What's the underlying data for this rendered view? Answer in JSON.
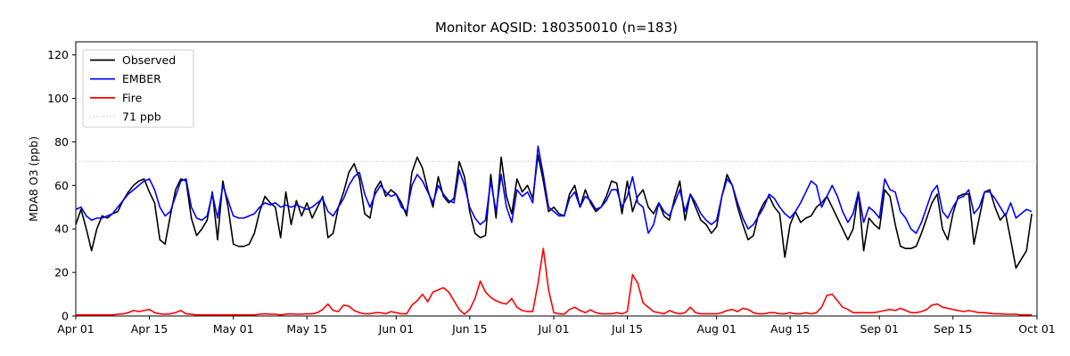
{
  "figure": {
    "title": "Monitor AQSID: 180350010 (n=183)",
    "ylabel": "MDA8 O3 (ppb)"
  },
  "chart_data": {
    "type": "line",
    "title": "Monitor AQSID: 180350010 (n=183)",
    "xlabel": "",
    "ylabel": "MDA8 O3 (ppb)",
    "n_points": 183,
    "x_range_days": 183,
    "x_start": "Apr 01",
    "x_end": "Oct 01",
    "ylim": [
      0,
      126
    ],
    "grid": false,
    "y_ticks": [
      0,
      20,
      40,
      60,
      80,
      100,
      120
    ],
    "x_ticks": [
      {
        "label": "Apr 01",
        "day": 0
      },
      {
        "label": "Apr 15",
        "day": 14
      },
      {
        "label": "May 01",
        "day": 30
      },
      {
        "label": "May 15",
        "day": 44
      },
      {
        "label": "Jun 01",
        "day": 61
      },
      {
        "label": "Jun 15",
        "day": 75
      },
      {
        "label": "Jul 01",
        "day": 91
      },
      {
        "label": "Jul 15",
        "day": 105
      },
      {
        "label": "Aug 01",
        "day": 122
      },
      {
        "label": "Aug 15",
        "day": 136
      },
      {
        "label": "Sep 01",
        "day": 153
      },
      {
        "label": "Sep 15",
        "day": 167
      },
      {
        "label": "Oct 01",
        "day": 183
      }
    ],
    "threshold": {
      "label": "71 ppb",
      "value": 71,
      "color": "#d3d3d3",
      "style": "dotted"
    },
    "legend": {
      "position": "upper-left",
      "entries": [
        {
          "label": "Observed",
          "color": "#000000",
          "style": "solid"
        },
        {
          "label": "EMBER",
          "color": "#0000ff",
          "style": "solid"
        },
        {
          "label": "Fire",
          "color": "#ff0000",
          "style": "solid"
        },
        {
          "label": "71 ppb",
          "color": "#d3d3d3",
          "style": "dotted"
        }
      ]
    },
    "series": [
      {
        "name": "Observed",
        "color": "#000000",
        "style": "solid",
        "values": [
          42,
          49,
          40,
          30,
          40,
          46,
          45,
          47,
          48,
          53,
          57,
          60,
          62,
          63,
          57,
          52,
          35,
          33,
          46,
          58,
          63,
          62,
          45,
          37,
          40,
          44,
          57,
          35,
          62,
          50,
          33,
          32,
          32,
          33,
          38,
          48,
          55,
          52,
          50,
          36,
          57,
          42,
          53,
          46,
          52,
          45,
          50,
          55,
          36,
          38,
          50,
          57,
          66,
          70,
          63,
          47,
          45,
          58,
          62,
          55,
          58,
          56,
          52,
          46,
          66,
          73,
          68,
          58,
          50,
          64,
          55,
          52,
          54,
          71,
          64,
          48,
          38,
          36,
          37,
          65,
          45,
          73,
          55,
          47,
          63,
          57,
          60,
          54,
          74,
          62,
          48,
          50,
          47,
          46,
          56,
          60,
          50,
          58,
          52,
          48,
          50,
          55,
          62,
          61,
          47,
          62,
          48,
          55,
          58,
          50,
          47,
          52,
          46,
          44,
          54,
          62,
          44,
          56,
          50,
          44,
          42,
          38,
          41,
          55,
          65,
          60,
          50,
          42,
          35,
          37,
          47,
          52,
          55,
          50,
          47,
          27,
          42,
          48,
          43,
          45,
          46,
          50,
          52,
          55,
          50,
          45,
          40,
          35,
          40,
          57,
          30,
          45,
          42,
          40,
          58,
          55,
          42,
          32,
          31,
          31,
          32,
          38,
          45,
          52,
          56,
          40,
          35,
          47,
          55,
          56,
          56,
          33,
          45,
          57,
          58,
          50,
          44,
          47,
          35,
          22,
          26,
          30,
          47
        ]
      },
      {
        "name": "EMBER",
        "color": "#0000ff",
        "style": "solid",
        "values": [
          49,
          50,
          46,
          44,
          45,
          45,
          46,
          47,
          50,
          53,
          56,
          58,
          60,
          62,
          63,
          58,
          50,
          46,
          48,
          55,
          62,
          63,
          50,
          45,
          44,
          46,
          56,
          45,
          60,
          53,
          46,
          45,
          45,
          46,
          47,
          50,
          52,
          51,
          52,
          50,
          51,
          50,
          51,
          50,
          49,
          50,
          52,
          54,
          48,
          46,
          50,
          54,
          60,
          64,
          66,
          56,
          50,
          56,
          60,
          57,
          55,
          56,
          50,
          48,
          60,
          65,
          62,
          57,
          52,
          60,
          56,
          53,
          52,
          67,
          60,
          50,
          45,
          42,
          44,
          62,
          48,
          65,
          50,
          43,
          58,
          55,
          57,
          52,
          78,
          65,
          50,
          48,
          46,
          46,
          54,
          57,
          50,
          55,
          53,
          49,
          50,
          53,
          58,
          58,
          50,
          55,
          64,
          52,
          50,
          38,
          42,
          52,
          48,
          46,
          52,
          58,
          48,
          56,
          52,
          47,
          44,
          42,
          44,
          55,
          63,
          60,
          52,
          45,
          40,
          42,
          46,
          50,
          56,
          54,
          50,
          47,
          45,
          48,
          52,
          57,
          62,
          60,
          50,
          55,
          60,
          55,
          48,
          43,
          47,
          57,
          43,
          50,
          48,
          45,
          63,
          58,
          57,
          48,
          45,
          40,
          38,
          43,
          50,
          57,
          60,
          48,
          45,
          50,
          54,
          55,
          58,
          47,
          50,
          57,
          57,
          54,
          50,
          46,
          52,
          45,
          47,
          49,
          48
        ]
      },
      {
        "name": "Fire",
        "color": "#ff0000",
        "style": "solid",
        "values": [
          0.5,
          0.5,
          0.5,
          0.5,
          0.5,
          0.5,
          0.5,
          0.5,
          0.8,
          1,
          1.5,
          2.5,
          2,
          2.5,
          3,
          1.5,
          1,
          0.8,
          1,
          1.5,
          2.5,
          1,
          0.8,
          0.5,
          0.5,
          0.5,
          0.5,
          0.5,
          0.5,
          0.5,
          0.5,
          0.5,
          0.5,
          0.5,
          0.5,
          0.8,
          1,
          0.8,
          0.8,
          0.5,
          0.8,
          1,
          0.8,
          0.8,
          1,
          1,
          1.5,
          3,
          5.5,
          2.5,
          2,
          5,
          4.5,
          2.5,
          1.5,
          1,
          1,
          1.5,
          1.5,
          1,
          2,
          1.5,
          1,
          1,
          5,
          7,
          10,
          6.5,
          11,
          12,
          13,
          11,
          7,
          3,
          0.8,
          3,
          8,
          16,
          11,
          8.5,
          7,
          6,
          5.5,
          8,
          4,
          2.5,
          2,
          2,
          15,
          31,
          12,
          1.5,
          1,
          0.8,
          3,
          4,
          2.5,
          1.5,
          2.8,
          1.5,
          1,
          1,
          1,
          1.5,
          1,
          2,
          19,
          15,
          6,
          4,
          2,
          1.5,
          1,
          2.5,
          1.5,
          1,
          1.5,
          4,
          1.5,
          1,
          1,
          1,
          1,
          1.5,
          2.5,
          3,
          2,
          3.5,
          3,
          1.5,
          1,
          1,
          1.5,
          1.5,
          1,
          1,
          1.5,
          1,
          1,
          1.5,
          1,
          1.5,
          4,
          9.5,
          10,
          7,
          4,
          3,
          1.5,
          1.5,
          1.5,
          1.5,
          1.5,
          2,
          2.5,
          3,
          2.5,
          3.5,
          2.5,
          1.5,
          1.5,
          2,
          3,
          5,
          5.5,
          4,
          3.5,
          3,
          2.5,
          2,
          2.5,
          2,
          1.5,
          1.5,
          1.2,
          1,
          1,
          0.8,
          0.8,
          0.8,
          0.5,
          0.5,
          0.5
        ]
      }
    ]
  }
}
